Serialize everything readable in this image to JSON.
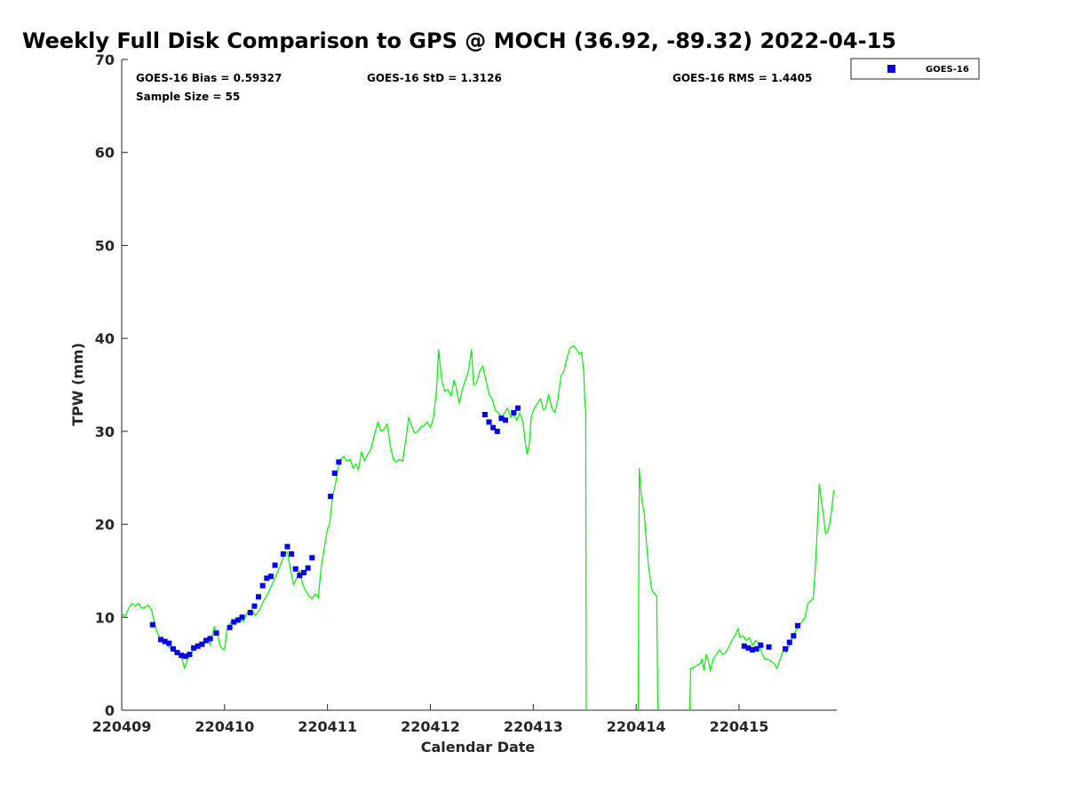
{
  "chart_data": {
    "type": "scatter",
    "title": "Weekly Full Disk Comparison to GPS @ MOCH (36.92, -89.32) 2022-04-15",
    "xlabel": "Calendar Date",
    "ylabel": "TPW (mm)",
    "xlim": [
      0,
      6.95
    ],
    "ylim": [
      0,
      70
    ],
    "x_tick_values": [
      0,
      1,
      2,
      3,
      4,
      5,
      6
    ],
    "x_tick_labels": [
      "220409",
      "220410",
      "220411",
      "220412",
      "220413",
      "220414",
      "220415"
    ],
    "y_tick_values": [
      0,
      10,
      20,
      30,
      40,
      50,
      60,
      70
    ],
    "y_tick_labels": [
      "0",
      "10",
      "20",
      "30",
      "40",
      "50",
      "60",
      "70"
    ],
    "grid": false,
    "legend_position": "top-right, outside",
    "stats": {
      "bias": "GOES-16 Bias = 0.59327",
      "std": "GOES-16 StD = 1.3126",
      "rms": "GOES-16 RMS = 1.4405",
      "sample": "Sample Size = 55"
    },
    "series": [
      {
        "name": "GPS",
        "style": "line",
        "color": "#00ee00",
        "segments": [
          [
            [
              0.0,
              10.5
            ],
            [
              0.03,
              10.0
            ],
            [
              0.07,
              11.0
            ],
            [
              0.1,
              11.5
            ],
            [
              0.13,
              11.2
            ],
            [
              0.16,
              11.5
            ],
            [
              0.19,
              11.0
            ],
            [
              0.22,
              11.0
            ],
            [
              0.26,
              11.3
            ],
            [
              0.29,
              10.8
            ],
            [
              0.31,
              9.8
            ],
            [
              0.34,
              8.5
            ],
            [
              0.38,
              7.5
            ],
            [
              0.42,
              7.3
            ],
            [
              0.46,
              6.8
            ],
            [
              0.5,
              6.4
            ],
            [
              0.54,
              6.0
            ],
            [
              0.58,
              5.8
            ],
            [
              0.61,
              4.5
            ],
            [
              0.64,
              5.5
            ],
            [
              0.68,
              6.2
            ],
            [
              0.72,
              6.8
            ],
            [
              0.76,
              6.8
            ],
            [
              0.8,
              7.0
            ],
            [
              0.83,
              7.8
            ],
            [
              0.86,
              7.0
            ],
            [
              0.9,
              9.0
            ],
            [
              0.93,
              8.2
            ],
            [
              0.96,
              6.8
            ],
            [
              1.0,
              6.5
            ],
            [
              1.02,
              8.5
            ],
            [
              1.06,
              9.5
            ],
            [
              1.1,
              9.2
            ],
            [
              1.14,
              10.0
            ],
            [
              1.18,
              9.5
            ],
            [
              1.22,
              10.5
            ],
            [
              1.26,
              10.8
            ],
            [
              1.3,
              10.2
            ],
            [
              1.34,
              10.8
            ],
            [
              1.38,
              11.8
            ],
            [
              1.42,
              12.5
            ],
            [
              1.46,
              13.5
            ],
            [
              1.5,
              14.5
            ],
            [
              1.54,
              15.5
            ],
            [
              1.58,
              16.8
            ],
            [
              1.61,
              17.0
            ],
            [
              1.64,
              15.2
            ],
            [
              1.67,
              13.5
            ],
            [
              1.7,
              14.2
            ],
            [
              1.73,
              15.0
            ],
            [
              1.76,
              13.5
            ],
            [
              1.79,
              12.8
            ],
            [
              1.82,
              12.3
            ],
            [
              1.85,
              12.0
            ],
            [
              1.88,
              12.5
            ],
            [
              1.91,
              12.1
            ],
            [
              1.94,
              15.5
            ],
            [
              1.97,
              17.5
            ],
            [
              2.0,
              19.5
            ],
            [
              2.02,
              20.0
            ],
            [
              2.05,
              23.0
            ],
            [
              2.08,
              24.5
            ],
            [
              2.1,
              26.0
            ],
            [
              2.13,
              27.0
            ],
            [
              2.16,
              27.3
            ],
            [
              2.19,
              26.8
            ],
            [
              2.22,
              27.0
            ],
            [
              2.25,
              26.0
            ],
            [
              2.28,
              26.5
            ],
            [
              2.3,
              25.8
            ],
            [
              2.33,
              27.8
            ],
            [
              2.36,
              26.8
            ],
            [
              2.39,
              27.5
            ],
            [
              2.42,
              28.0
            ],
            [
              2.46,
              29.8
            ],
            [
              2.49,
              31.0
            ],
            [
              2.52,
              30.0
            ],
            [
              2.55,
              30.2
            ],
            [
              2.58,
              30.8
            ],
            [
              2.61,
              28.5
            ],
            [
              2.64,
              27.0
            ],
            [
              2.67,
              26.7
            ],
            [
              2.7,
              27.0
            ],
            [
              2.73,
              26.8
            ],
            [
              2.76,
              29.0
            ],
            [
              2.79,
              31.5
            ],
            [
              2.82,
              30.5
            ],
            [
              2.85,
              29.8
            ],
            [
              2.88,
              30.0
            ],
            [
              2.91,
              30.5
            ],
            [
              2.94,
              30.6
            ],
            [
              2.97,
              31.0
            ],
            [
              3.0,
              30.4
            ],
            [
              3.03,
              31.5
            ],
            [
              3.06,
              34.5
            ],
            [
              3.08,
              38.8
            ],
            [
              3.11,
              35.5
            ],
            [
              3.14,
              34.3
            ],
            [
              3.17,
              34.5
            ],
            [
              3.2,
              33.8
            ],
            [
              3.23,
              35.5
            ],
            [
              3.25,
              34.8
            ],
            [
              3.28,
              33.0
            ],
            [
              3.31,
              34.5
            ],
            [
              3.34,
              35.5
            ],
            [
              3.37,
              36.5
            ],
            [
              3.4,
              38.8
            ],
            [
              3.42,
              35.0
            ],
            [
              3.45,
              35.2
            ],
            [
              3.48,
              36.5
            ],
            [
              3.51,
              37.0
            ],
            [
              3.54,
              35.5
            ],
            [
              3.57,
              34.0
            ],
            [
              3.6,
              33.5
            ],
            [
              3.63,
              32.3
            ],
            [
              3.66,
              32.0
            ],
            [
              3.69,
              31.5
            ],
            [
              3.72,
              32.0
            ],
            [
              3.75,
              32.5
            ],
            [
              3.78,
              31.5
            ],
            [
              3.81,
              31.8
            ],
            [
              3.84,
              31.2
            ],
            [
              3.87,
              32.0
            ],
            [
              3.9,
              31.0
            ],
            [
              3.92,
              29.0
            ],
            [
              3.94,
              27.5
            ],
            [
              3.96,
              28.5
            ],
            [
              3.98,
              31.5
            ],
            [
              4.01,
              32.5
            ],
            [
              4.04,
              33.0
            ],
            [
              4.07,
              33.5
            ],
            [
              4.1,
              32.3
            ],
            [
              4.12,
              32.5
            ],
            [
              4.15,
              34.0
            ],
            [
              4.18,
              32.5
            ],
            [
              4.21,
              32.0
            ],
            [
              4.24,
              33.5
            ],
            [
              4.27,
              36.0
            ],
            [
              4.3,
              36.5
            ],
            [
              4.33,
              38.0
            ],
            [
              4.36,
              39.0
            ],
            [
              4.39,
              39.2
            ],
            [
              4.42,
              38.8
            ],
            [
              4.45,
              38.3
            ],
            [
              4.47,
              38.5
            ],
            [
              4.49,
              36.5
            ],
            [
              4.5,
              33.5
            ],
            [
              4.51,
              32.0
            ],
            [
              4.515,
              0.0
            ]
          ],
          [
            [
              5.02,
              0.0
            ],
            [
              5.03,
              26.0
            ],
            [
              5.05,
              23.0
            ],
            [
              5.08,
              21.0
            ],
            [
              5.1,
              18.0
            ],
            [
              5.12,
              15.5
            ],
            [
              5.15,
              13.0
            ],
            [
              5.18,
              12.5
            ],
            [
              5.2,
              12.3
            ],
            [
              5.21,
              0.0
            ]
          ],
          [
            [
              5.52,
              0.0
            ],
            [
              5.53,
              4.5
            ],
            [
              5.56,
              4.6
            ],
            [
              5.59,
              4.8
            ],
            [
              5.62,
              5.0
            ],
            [
              5.64,
              5.5
            ],
            [
              5.66,
              4.3
            ],
            [
              5.68,
              6.0
            ],
            [
              5.7,
              5.5
            ],
            [
              5.72,
              4.2
            ],
            [
              5.75,
              5.5
            ],
            [
              5.78,
              6.0
            ],
            [
              5.81,
              6.5
            ],
            [
              5.84,
              6.0
            ],
            [
              5.87,
              6.2
            ],
            [
              5.9,
              6.8
            ],
            [
              5.93,
              7.5
            ],
            [
              5.96,
              8.0
            ],
            [
              5.99,
              8.8
            ],
            [
              6.01,
              7.8
            ],
            [
              6.04,
              8.0
            ],
            [
              6.07,
              7.5
            ],
            [
              6.1,
              7.8
            ],
            [
              6.13,
              7.0
            ],
            [
              6.16,
              7.5
            ],
            [
              6.19,
              7.2
            ],
            [
              6.22,
              6.2
            ],
            [
              6.25,
              5.5
            ],
            [
              6.28,
              5.5
            ],
            [
              6.31,
              5.3
            ],
            [
              6.34,
              5.0
            ],
            [
              6.37,
              4.5
            ],
            [
              6.39,
              5.2
            ],
            [
              6.41,
              5.8
            ],
            [
              6.43,
              6.5
            ],
            [
              6.46,
              6.2
            ],
            [
              6.49,
              7.0
            ],
            [
              6.52,
              8.0
            ],
            [
              6.55,
              8.5
            ],
            [
              6.58,
              9.0
            ],
            [
              6.61,
              9.5
            ],
            [
              6.64,
              10.0
            ],
            [
              6.67,
              11.5
            ],
            [
              6.7,
              11.8
            ],
            [
              6.72,
              12.0
            ],
            [
              6.74,
              15.0
            ],
            [
              6.76,
              19.5
            ],
            [
              6.78,
              24.3
            ],
            [
              6.8,
              22.5
            ],
            [
              6.82,
              21.0
            ],
            [
              6.84,
              19.0
            ],
            [
              6.86,
              19.2
            ],
            [
              6.88,
              20.0
            ],
            [
              6.9,
              21.5
            ],
            [
              6.92,
              23.7
            ]
          ]
        ]
      },
      {
        "name": "GOES-16",
        "style": "markers",
        "marker": "square",
        "color": "#0000ee",
        "points": [
          [
            0.3,
            9.2
          ],
          [
            0.38,
            7.6
          ],
          [
            0.42,
            7.4
          ],
          [
            0.46,
            7.2
          ],
          [
            0.5,
            6.6
          ],
          [
            0.54,
            6.2
          ],
          [
            0.58,
            5.9
          ],
          [
            0.62,
            5.8
          ],
          [
            0.66,
            6.0
          ],
          [
            0.7,
            6.7
          ],
          [
            0.74,
            6.9
          ],
          [
            0.78,
            7.1
          ],
          [
            0.82,
            7.5
          ],
          [
            0.86,
            7.7
          ],
          [
            0.92,
            8.3
          ],
          [
            1.05,
            8.9
          ],
          [
            1.09,
            9.5
          ],
          [
            1.13,
            9.7
          ],
          [
            1.17,
            10.0
          ],
          [
            1.25,
            10.5
          ],
          [
            1.29,
            11.2
          ],
          [
            1.33,
            12.2
          ],
          [
            1.37,
            13.4
          ],
          [
            1.41,
            14.2
          ],
          [
            1.45,
            14.4
          ],
          [
            1.49,
            15.6
          ],
          [
            1.57,
            16.8
          ],
          [
            1.61,
            17.6
          ],
          [
            1.65,
            16.8
          ],
          [
            1.69,
            15.2
          ],
          [
            1.73,
            14.5
          ],
          [
            1.77,
            14.8
          ],
          [
            1.81,
            15.3
          ],
          [
            1.85,
            16.4
          ],
          [
            2.03,
            23.0
          ],
          [
            2.07,
            25.5
          ],
          [
            2.11,
            26.7
          ],
          [
            3.53,
            31.8
          ],
          [
            3.57,
            31.0
          ],
          [
            3.61,
            30.4
          ],
          [
            3.65,
            30.0
          ],
          [
            3.69,
            31.4
          ],
          [
            3.73,
            31.2
          ],
          [
            3.81,
            32.0
          ],
          [
            3.85,
            32.5
          ],
          [
            6.05,
            6.9
          ],
          [
            6.09,
            6.7
          ],
          [
            6.13,
            6.5
          ],
          [
            6.17,
            6.6
          ],
          [
            6.21,
            7.0
          ],
          [
            6.29,
            6.8
          ],
          [
            6.45,
            6.6
          ],
          [
            6.49,
            7.3
          ],
          [
            6.53,
            8.0
          ],
          [
            6.57,
            9.1
          ]
        ]
      }
    ]
  }
}
